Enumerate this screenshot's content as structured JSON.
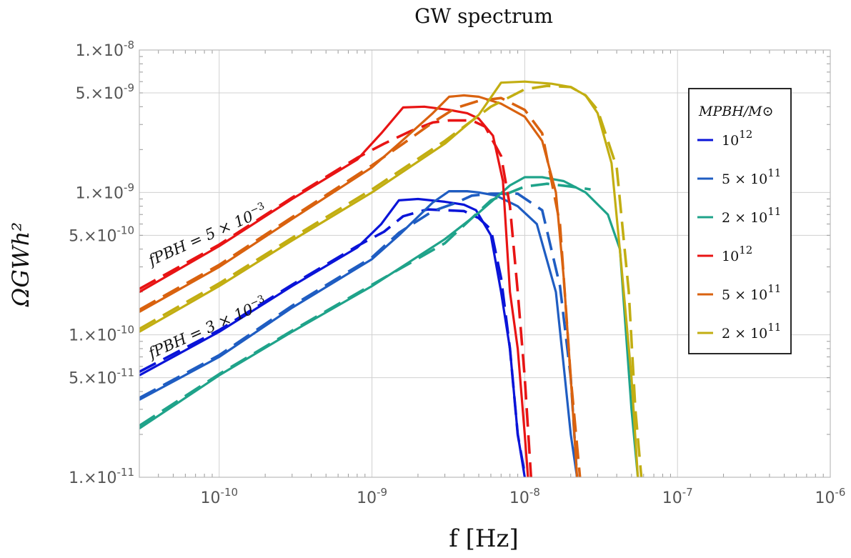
{
  "chart_data": {
    "type": "line",
    "title": "GW spectrum",
    "xlabel": "f [Hz]",
    "ylabel": "ΩGWh²",
    "xscale": "log",
    "yscale": "log",
    "xlim": [
      3e-11,
      1e-06
    ],
    "ylim": [
      1e-11,
      1e-08
    ],
    "grid": true,
    "x_ticks": [
      {
        "value": 1e-10,
        "base": "10",
        "exp": "-10"
      },
      {
        "value": 1e-09,
        "base": "10",
        "exp": "-9"
      },
      {
        "value": 1e-08,
        "base": "10",
        "exp": "-8"
      },
      {
        "value": 1e-07,
        "base": "10",
        "exp": "-7"
      },
      {
        "value": 1e-06,
        "base": "10",
        "exp": "-6"
      }
    ],
    "y_ticks": [
      {
        "value": 1e-08,
        "label": "1.×10",
        "exp": "-8"
      },
      {
        "value": 5e-09,
        "label": "5.×10",
        "exp": "-9"
      },
      {
        "value": 1e-09,
        "label": "1.×10",
        "exp": "-9"
      },
      {
        "value": 5e-10,
        "label": "5.×10",
        "exp": "-10"
      },
      {
        "value": 1e-10,
        "label": "1.×10",
        "exp": "-10"
      },
      {
        "value": 5e-11,
        "label": "5.×10",
        "exp": "-11"
      },
      {
        "value": 1e-11,
        "label": "1.×10",
        "exp": "-11"
      }
    ],
    "legend": {
      "position": "right",
      "title": "MPBH/M⊙",
      "entries": [
        {
          "label": "10",
          "exp": "12",
          "color": "#0a14d8"
        },
        {
          "label": "5 × 10",
          "exp": "11",
          "color": "#1f5dc2"
        },
        {
          "label": "2 × 10",
          "exp": "11",
          "color": "#1fa38a"
        },
        {
          "label": "10",
          "exp": "12",
          "color": "#e81414"
        },
        {
          "label": "5 × 10",
          "exp": "11",
          "color": "#d9620f"
        },
        {
          "label": "2 × 10",
          "exp": "11",
          "color": "#c2ae12"
        }
      ]
    },
    "annotations": [
      {
        "text": "fPBH = 5 × 10",
        "exp": "−3"
      },
      {
        "text": "fPBH = 3 × 10",
        "exp": "−3"
      }
    ],
    "series": [
      {
        "name": "10^12 (fPBH=3e-3)",
        "color": "#0a14d8",
        "style": "solid",
        "x": [
          3e-11,
          1e-10,
          3e-10,
          8e-10,
          1.15e-09,
          1.5e-09,
          2e-09,
          3e-09,
          4e-09,
          4.8e-09,
          6e-09,
          7e-09,
          8e-09,
          9e-09,
          1e-08
        ],
        "y": [
          5.2e-11,
          1.05e-10,
          2.2e-10,
          4.1e-10,
          6e-10,
          8.8e-10,
          9e-10,
          8.6e-10,
          8.2e-10,
          7.5e-10,
          5e-10,
          2e-10,
          8e-11,
          2e-11,
          1e-11
        ]
      },
      {
        "name": "10^12 (fPBH=3e-3) fit",
        "color": "#0a14d8",
        "style": "dashed",
        "x": [
          3e-11,
          1e-10,
          3e-10,
          8e-10,
          1.2e-09,
          1.6e-09,
          2.3e-09,
          3e-09,
          4e-09,
          5e-09,
          6e-09,
          7e-09,
          8e-09,
          9e-09,
          1e-08
        ],
        "y": [
          5.5e-11,
          1.08e-10,
          2.25e-10,
          4.2e-10,
          5.3e-10,
          6.8e-10,
          7.6e-10,
          7.5e-10,
          7.4e-10,
          6.6e-10,
          5.5e-10,
          2.5e-10,
          8e-11,
          2e-11,
          1.05e-11
        ]
      },
      {
        "name": "5x10^11 (fPBH=3e-3)",
        "color": "#1f5dc2",
        "style": "solid",
        "x": [
          3e-11,
          1e-10,
          3e-10,
          1e-09,
          1.5e-09,
          2.5e-09,
          3.2e-09,
          4.2e-09,
          5e-09,
          6.5e-09,
          9e-09,
          1.2e-08,
          1.6e-08,
          1.8e-08,
          2e-08,
          2.2e-08
        ],
        "y": [
          3.5e-11,
          7e-11,
          1.55e-10,
          3.4e-10,
          5e-10,
          8.5e-10,
          1.02e-09,
          1.02e-09,
          1e-09,
          9.5e-10,
          8e-10,
          6e-10,
          2e-10,
          6e-11,
          2e-11,
          1e-11
        ]
      },
      {
        "name": "5x10^11 (fPBH=3e-3) fit",
        "color": "#1f5dc2",
        "style": "dashed",
        "x": [
          3e-11,
          1e-10,
          3e-10,
          1e-09,
          1.5e-09,
          2.5e-09,
          3.5e-09,
          4.5e-09,
          6e-09,
          9e-09,
          1.3e-08,
          1.7e-08,
          2e-08,
          2.2e-08
        ],
        "y": [
          3.6e-11,
          7.2e-11,
          1.6e-10,
          3.5e-10,
          5.2e-10,
          7.4e-10,
          8.4e-10,
          9.5e-10,
          9.8e-10,
          9.8e-10,
          7.5e-10,
          2.2e-10,
          5e-11,
          1e-11
        ]
      },
      {
        "name": "2x10^11 (fPBH=3e-3)",
        "color": "#1fa38a",
        "style": "solid",
        "x": [
          3e-11,
          1e-10,
          3e-10,
          1e-09,
          3e-09,
          5e-09,
          8e-09,
          1e-08,
          1.3e-08,
          1.8e-08,
          2.5e-08,
          3.5e-08,
          4.2e-08,
          5e-08,
          5.5e-08
        ],
        "y": [
          2.2e-11,
          5.2e-11,
          1.05e-10,
          2.2e-10,
          4.7e-10,
          7.2e-10,
          1.12e-09,
          1.28e-09,
          1.28e-09,
          1.2e-09,
          1e-09,
          7e-10,
          4e-10,
          3e-11,
          1e-11
        ]
      },
      {
        "name": "2x10^11 (fPBH=3e-3) fit",
        "color": "#1fa38a",
        "style": "dashed",
        "x": [
          3e-11,
          1e-10,
          3e-10,
          1e-09,
          3e-09,
          6e-09,
          1e-08,
          1.4e-08,
          2e-08,
          2.7e-08
        ],
        "y": [
          2.3e-11,
          5.3e-11,
          1.07e-10,
          2.25e-10,
          4.4e-10,
          8.8e-10,
          1.1e-09,
          1.15e-09,
          1.1e-09,
          1.05e-09
        ]
      },
      {
        "name": "10^12 (fPBH=5e-3)",
        "color": "#e81414",
        "style": "solid",
        "x": [
          3e-11,
          1e-10,
          3e-10,
          8e-10,
          1.15e-09,
          1.6e-09,
          2.2e-09,
          3.2e-09,
          4.2e-09,
          5e-09,
          6.2e-09,
          7.2e-09,
          8e-09,
          9e-09,
          1e-08,
          1.05e-08
        ],
        "y": [
          2e-10,
          4.2e-10,
          9e-10,
          1.7e-09,
          2.6e-09,
          3.95e-09,
          4e-09,
          3.8e-09,
          3.6e-09,
          3.3e-09,
          2.5e-09,
          1.2e-09,
          2e-10,
          8e-11,
          2e-11,
          1e-11
        ]
      },
      {
        "name": "10^12 (fPBH=5e-3) fit",
        "color": "#e81414",
        "style": "dashed",
        "x": [
          3e-11,
          1e-10,
          3e-10,
          8e-10,
          1.2e-09,
          1.8e-09,
          2.5e-09,
          3.2e-09,
          4.5e-09,
          5.5e-09,
          7e-09,
          8e-09,
          9e-09,
          1e-08,
          1.1e-08
        ],
        "y": [
          2.1e-10,
          4.3e-10,
          9.2e-10,
          1.75e-09,
          2.2e-09,
          2.7e-09,
          3.1e-09,
          3.2e-09,
          3.2e-09,
          2.9e-09,
          1.8e-09,
          8e-10,
          2e-10,
          5e-11,
          1e-11
        ]
      },
      {
        "name": "5x10^11 (fPBH=5e-3)",
        "color": "#d9620f",
        "style": "solid",
        "x": [
          3e-11,
          1e-10,
          3e-10,
          1e-09,
          1.5e-09,
          2.5e-09,
          3.2e-09,
          4e-09,
          5e-09,
          7e-09,
          1e-08,
          1.3e-08,
          1.6e-08,
          1.8e-08,
          2e-08,
          2.2e-08
        ],
        "y": [
          1.45e-10,
          3e-10,
          6.5e-10,
          1.5e-09,
          2.2e-09,
          3.6e-09,
          4.7e-09,
          4.8e-09,
          4.7e-09,
          4.2e-09,
          3.4e-09,
          2.3e-09,
          1e-09,
          2.5e-10,
          5e-11,
          1e-11
        ]
      },
      {
        "name": "5x10^11 (fPBH=5e-3) fit",
        "color": "#d9620f",
        "style": "dashed",
        "x": [
          3e-11,
          1e-10,
          3e-10,
          1e-09,
          1.6e-09,
          2.5e-09,
          3.5e-09,
          5e-09,
          7e-09,
          1e-08,
          1.3e-08,
          1.7e-08,
          2e-08,
          2.3e-08
        ],
        "y": [
          1.5e-10,
          3.1e-10,
          6.7e-10,
          1.55e-09,
          2.2e-09,
          3.1e-09,
          3.9e-09,
          4.4e-09,
          4.6e-09,
          3.8e-09,
          2.6e-09,
          6e-10,
          5e-11,
          1e-11
        ]
      },
      {
        "name": "2x10^11 (fPBH=5e-3)",
        "color": "#c2ae12",
        "style": "solid",
        "x": [
          3e-11,
          1e-10,
          3e-10,
          1e-09,
          3e-09,
          5e-09,
          7e-09,
          1e-08,
          1.5e-08,
          2e-08,
          2.5e-08,
          3e-08,
          3.7e-08,
          4.3e-08,
          5e-08,
          5.5e-08
        ],
        "y": [
          1.05e-10,
          2.2e-10,
          4.6e-10,
          1e-09,
          2.2e-09,
          3.5e-09,
          5.9e-09,
          6e-09,
          5.8e-09,
          5.5e-09,
          4.8e-09,
          3.6e-09,
          1.6e-09,
          3e-10,
          5e-11,
          1e-11
        ]
      },
      {
        "name": "2x10^11 (fPBH=5e-3) fit",
        "color": "#c2ae12",
        "style": "dashed",
        "x": [
          3e-11,
          1e-10,
          3e-10,
          1e-09,
          3e-09,
          6e-09,
          1e-08,
          1.4e-08,
          2e-08,
          2.5e-08,
          3e-08,
          4e-08,
          4.8e-08,
          5.3e-08,
          5.8e-08
        ],
        "y": [
          1.1e-10,
          2.3e-10,
          4.8e-10,
          1.05e-09,
          2.3e-09,
          4e-09,
          5.3e-09,
          5.6e-09,
          5.5e-09,
          4.8e-09,
          3.8e-09,
          1.5e-09,
          2e-10,
          3e-11,
          1e-11
        ]
      }
    ]
  }
}
